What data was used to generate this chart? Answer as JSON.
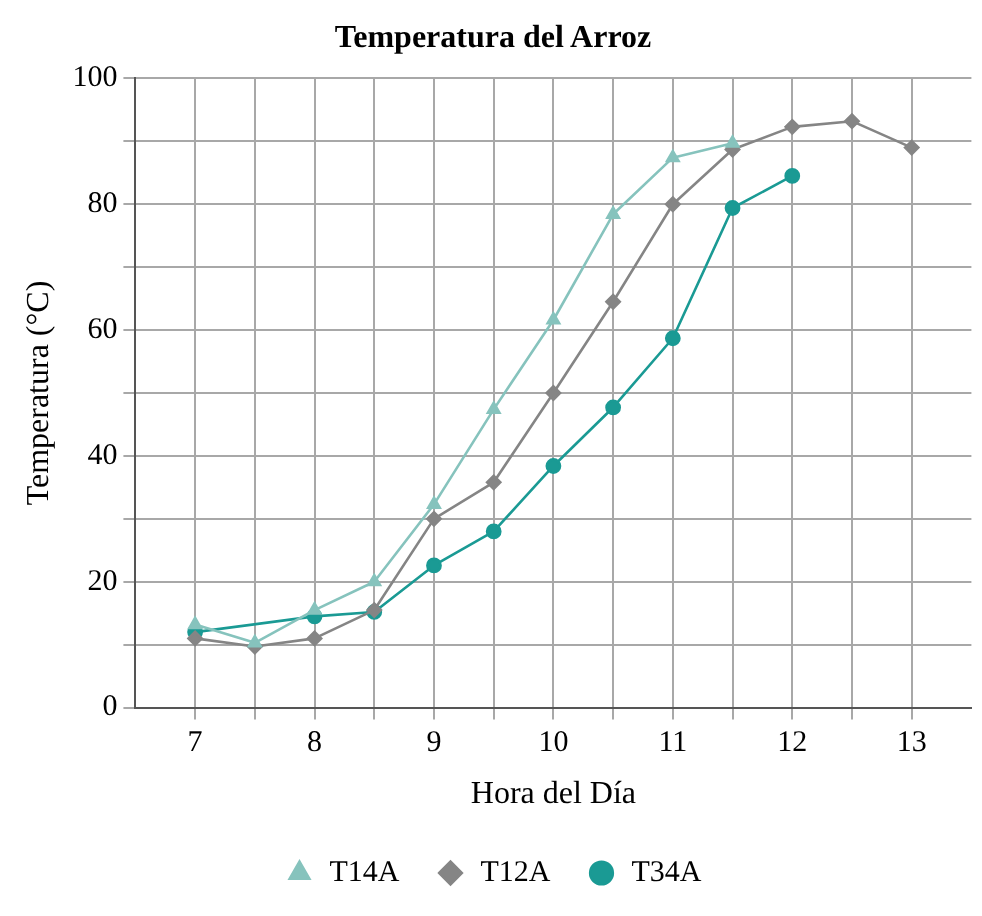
{
  "chart_data": {
    "type": "line",
    "title": "Temperatura del Arroz",
    "xlabel": "Hora del Día",
    "ylabel": "Temperatura (°C)",
    "xlim": [
      6.5,
      13.5
    ],
    "ylim": [
      0,
      100
    ],
    "xticks": [
      7,
      {
        "value": 7.5,
        "label": null
      },
      8,
      {
        "value": 8.5,
        "label": null
      },
      9,
      {
        "value": 9.5,
        "label": null
      },
      10,
      {
        "value": 10.5,
        "label": null
      },
      11,
      {
        "value": 11.5,
        "label": null
      },
      12,
      {
        "value": 12.5,
        "label": null
      },
      13
    ],
    "yticks": [
      0,
      {
        "value": 10,
        "label": null
      },
      20,
      {
        "value": 30,
        "label": null
      },
      40,
      {
        "value": 50,
        "label": null
      },
      60,
      {
        "value": 70,
        "label": null
      },
      80,
      {
        "value": 90,
        "label": null
      },
      100
    ],
    "grid": true,
    "legend": "bottom",
    "line_style": "solid",
    "series": [
      {
        "name": "T14A",
        "color": "#86c3bd",
        "marker": "triangle",
        "x": [
          7,
          7.5,
          8,
          8.5,
          9,
          9.5,
          10,
          10.5,
          11,
          11.5
        ],
        "values": [
          13.2,
          10.3,
          15.5,
          20,
          32.3,
          47.4,
          61.6,
          78.4,
          87.4,
          89.7
        ]
      },
      {
        "name": "T12A",
        "color": "#858585",
        "marker": "diamond",
        "x": [
          7,
          7.5,
          8,
          8.5,
          9,
          9.5,
          10,
          10.5,
          11,
          11.5,
          12,
          12.5,
          13
        ],
        "values": [
          11,
          9.7,
          11,
          15.5,
          30,
          35.8,
          50,
          64.5,
          80,
          88.7,
          92.3,
          93.2,
          89
        ]
      },
      {
        "name": "T34A",
        "color": "#1a9a94",
        "marker": "circle",
        "x": [
          7,
          8,
          8.5,
          9,
          9.5,
          10,
          10.5,
          11,
          11.5,
          12
        ],
        "values": [
          12,
          14.5,
          15.2,
          22.6,
          28,
          38.4,
          47.7,
          58.7,
          79.4,
          84.5
        ]
      }
    ]
  }
}
